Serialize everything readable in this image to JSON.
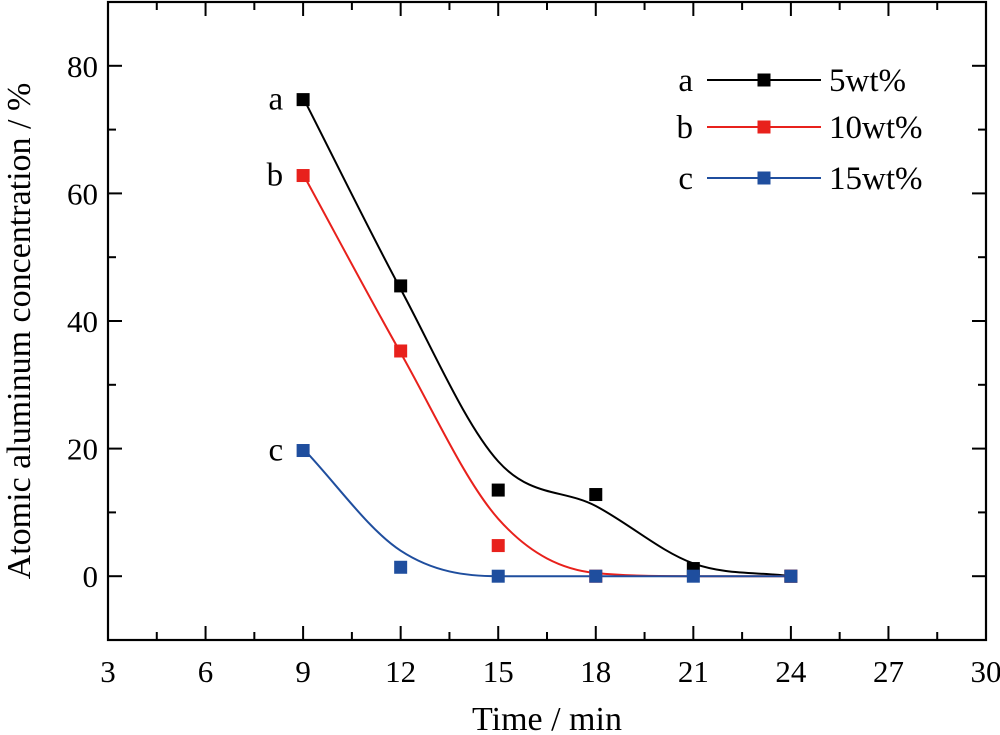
{
  "chart_data": {
    "type": "line",
    "xlabel": "Time / min",
    "ylabel": "Atomic aluminum concentration / %",
    "xlim": [
      3,
      30
    ],
    "ylim": [
      -10,
      90
    ],
    "xticks": [
      3,
      6,
      9,
      12,
      15,
      18,
      21,
      24,
      27,
      30
    ],
    "yticks": [
      0,
      20,
      40,
      60,
      80
    ],
    "x_minor_ticks": [
      4.5,
      7.5,
      10.5,
      13.5,
      16.5,
      19.5,
      22.5,
      25.5,
      28.5
    ],
    "y_minor_ticks": [
      -10,
      10,
      30,
      50,
      70,
      90
    ],
    "grid": false,
    "legend_position": "top-right",
    "series": [
      {
        "label": "a",
        "name": "5wt%",
        "color": "#000000",
        "x": [
          9,
          12,
          15,
          18,
          21,
          24
        ],
        "y": [
          74.7,
          45.5,
          13.5,
          12.8,
          1.2,
          0
        ],
        "fit_x": [
          9,
          12,
          15,
          18,
          21,
          24
        ],
        "fit_y": [
          75,
          45,
          18,
          11,
          2,
          0
        ]
      },
      {
        "label": "b",
        "name": "10wt%",
        "color": "#e8211c",
        "x": [
          9,
          12,
          15,
          18,
          24
        ],
        "y": [
          62.8,
          35.3,
          4.8,
          0,
          0
        ],
        "fit_x": [
          9,
          12,
          15,
          18,
          21,
          24
        ],
        "fit_y": [
          63,
          35,
          9,
          0.5,
          0,
          0
        ]
      },
      {
        "label": "c",
        "name": "15wt%",
        "color": "#1f4e9e",
        "x": [
          9,
          12,
          15,
          18,
          21,
          24
        ],
        "y": [
          19.7,
          1.4,
          0,
          0,
          0,
          0
        ],
        "fit_x": [
          9,
          12,
          15,
          18,
          21,
          24
        ],
        "fit_y": [
          20,
          4,
          0,
          0,
          0,
          0
        ]
      }
    ]
  }
}
